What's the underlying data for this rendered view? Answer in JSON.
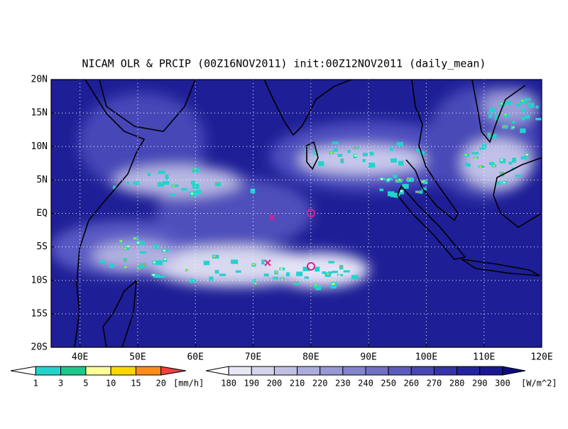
{
  "map": {
    "title": "NICAM OLR & PRCIP (00Z16NOV2011) init:00Z12NOV2011 (daily_mean)",
    "xlim": [
      35,
      120
    ],
    "ylim": [
      -20,
      20
    ],
    "xticks": [
      {
        "value": 40,
        "label": "40E"
      },
      {
        "value": 50,
        "label": "50E"
      },
      {
        "value": 60,
        "label": "60E"
      },
      {
        "value": 70,
        "label": "70E"
      },
      {
        "value": 80,
        "label": "80E"
      },
      {
        "value": 90,
        "label": "90E"
      },
      {
        "value": 100,
        "label": "100E"
      },
      {
        "value": 110,
        "label": "110E"
      },
      {
        "value": 120,
        "label": "120E"
      }
    ],
    "yticks": [
      {
        "value": 20,
        "label": "20N"
      },
      {
        "value": 15,
        "label": "15N"
      },
      {
        "value": 10,
        "label": "10N"
      },
      {
        "value": 5,
        "label": "5N"
      },
      {
        "value": 0,
        "label": "EQ"
      },
      {
        "value": -5,
        "label": "5S"
      },
      {
        "value": -10,
        "label": "10S"
      },
      {
        "value": -15,
        "label": "15S"
      },
      {
        "value": -20,
        "label": "20S"
      }
    ],
    "grid": true
  },
  "precip_colorbar": {
    "labels": [
      1,
      3,
      5,
      10,
      15,
      20
    ],
    "unit": "[mm/h]",
    "colors": [
      "#ffffff",
      "#22d3cc",
      "#1ec88a",
      "#ffff99",
      "#ffd700",
      "#ff8c1a",
      "#f04040"
    ]
  },
  "olr_colorbar": {
    "labels": [
      180,
      190,
      200,
      210,
      220,
      230,
      240,
      250,
      260,
      270,
      280,
      290,
      300
    ],
    "unit": "[W/m^2]",
    "colors": [
      "#ffffff",
      "#e8e8f4",
      "#d4d4ec",
      "#c0c0e4",
      "#acacdc",
      "#9898d4",
      "#8484cc",
      "#7070c4",
      "#5c5cbc",
      "#4848b0",
      "#3434a8",
      "#2424a0",
      "#181890",
      "#0c0c80"
    ]
  }
}
